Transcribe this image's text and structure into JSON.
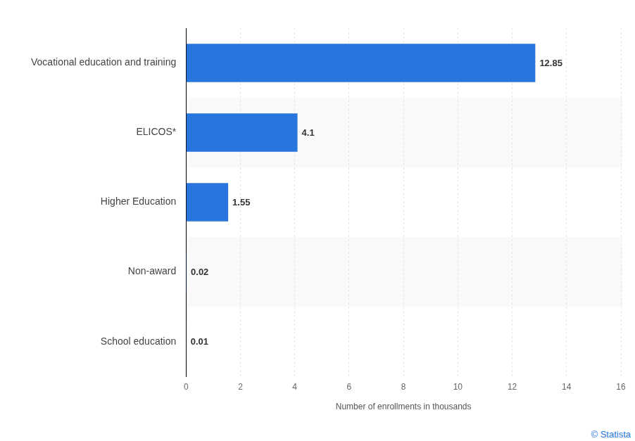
{
  "chart_data": {
    "type": "bar",
    "orientation": "horizontal",
    "categories": [
      "Vocational education and training",
      "ELICOS*",
      "Higher Education",
      "Non-award",
      "School education"
    ],
    "values": [
      12.85,
      4.1,
      1.55,
      0.02,
      0.01
    ],
    "color": "#2876dd",
    "x_label": "Number of enrollments in thousands",
    "xlim": [
      0,
      16
    ],
    "xticks": [
      0,
      2,
      4,
      6,
      8,
      10,
      12,
      14,
      16
    ],
    "grid": true,
    "data_labels": true,
    "credit": "© Statista"
  }
}
